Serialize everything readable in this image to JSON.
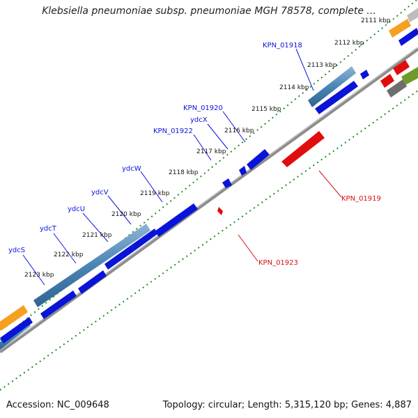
{
  "title": "Klebsiella pneumoniae subsp. pneumoniae MGH 78578, complete ...",
  "footer": {
    "accession_label": "Accession:",
    "accession": "NC_009648",
    "topology_label": "Topology:",
    "topology": "circular",
    "length_label": "Length:",
    "length": "5,315,120 bp",
    "genes_label": "Genes:",
    "genes": "4,887"
  },
  "ticks": [
    "2111 kbp",
    "2112 kbp",
    "2113 kbp",
    "2114 kbp",
    "2115 kbp",
    "2116 kbp",
    "2117 kbp",
    "2118 kbp",
    "2119 kbp",
    "2120 kbp",
    "2121 kbp",
    "2122 kbp",
    "2123 kbp"
  ],
  "gene_labels_forward": [
    "KPN_01918",
    "KPN_01920",
    "ydcX",
    "KPN_01922",
    "ydcW",
    "ydcV",
    "ydcU",
    "ydcT",
    "ydcS"
  ],
  "gene_labels_reverse": [
    "KPN_01919",
    "KPN_01923"
  ],
  "colors": {
    "forward_gene": "#0a14d8",
    "reverse_gene": "#e10d0d",
    "operon": "#4a84b4",
    "orange_feature": "#f5a020",
    "green_feature": "#6f9a2a",
    "grey_feature": "#7a7a7a",
    "forward_label": "#0a14d8",
    "reverse_label": "#d01010",
    "tick_dots": "#1f8a1f",
    "backbone": "#888888"
  }
}
